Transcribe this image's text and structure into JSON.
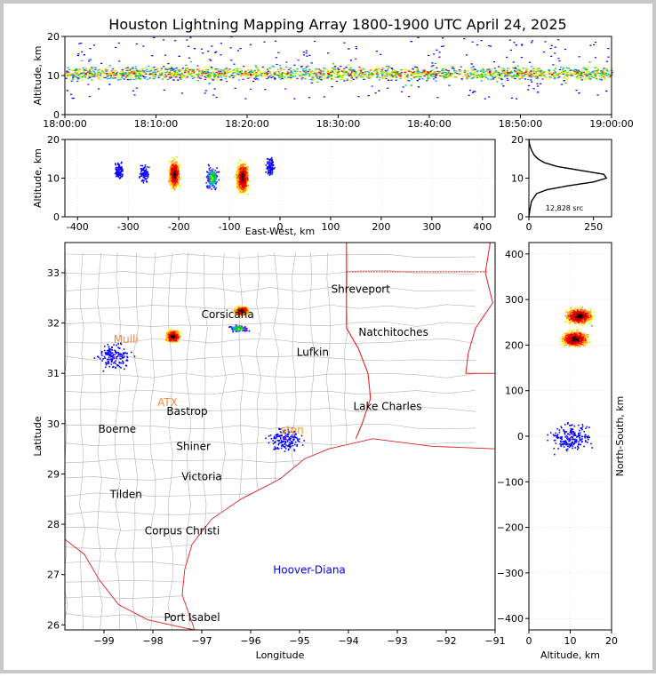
{
  "figure": {
    "title": "Houston Lightning Mapping Array 1800-1900 UTC April 24, 2025",
    "source_count_label": "12,828 src"
  },
  "colors": {
    "frame": "#c8c8c8",
    "grid": "#dcdcdc",
    "state_border": "#dd2222",
    "county_border": "#b4b4b4",
    "coast": "#dd2222",
    "density_scale": [
      "#0000ff",
      "#7700ff",
      "#00aaff",
      "#00cc00",
      "#aaff00",
      "#ffff00",
      "#ff9900",
      "#ff0000",
      "#aa0000",
      "#000000"
    ]
  },
  "chart_data": [
    {
      "panel": "time-altitude",
      "type": "scatter",
      "xlabel": "",
      "ylabel": "Altitude, km",
      "x_ticks": [
        "18:00:00",
        "18:10:00",
        "18:20:00",
        "18:30:00",
        "18:40:00",
        "18:50:00",
        "19:00:00"
      ],
      "xlim_minutes": [
        0,
        60
      ],
      "ylim": [
        0,
        20
      ],
      "y_ticks": [
        0,
        10,
        20
      ],
      "description_values": {
        "core_altitude_km": [
          8,
          13
        ],
        "max_altitude_km": 20
      }
    },
    {
      "panel": "east-west-altitude",
      "type": "scatter",
      "xlabel": "East-West, km",
      "ylabel": "Altitude, km",
      "xlim": [
        -425,
        425
      ],
      "ylim": [
        0,
        20
      ],
      "x_ticks": [
        -400,
        -300,
        -200,
        -100,
        0,
        100,
        200,
        300,
        400
      ],
      "y_ticks": [
        0,
        10,
        20
      ],
      "clusters": [
        {
          "x": -210,
          "alt": 11,
          "intensity": "high"
        },
        {
          "x": -75,
          "alt": 10,
          "intensity": "very high"
        },
        {
          "x": -320,
          "alt": 12,
          "intensity": "low"
        },
        {
          "x": -270,
          "alt": 11,
          "intensity": "low"
        },
        {
          "x": -135,
          "alt": 10,
          "intensity": "medium"
        },
        {
          "x": -20,
          "alt": 13,
          "intensity": "low"
        }
      ]
    },
    {
      "panel": "altitude-histogram",
      "type": "line",
      "xlim": [
        0,
        320
      ],
      "ylim": [
        0,
        20
      ],
      "x_ticks": [
        0,
        250
      ],
      "y_ticks": [
        0,
        10,
        20
      ],
      "profile": [
        {
          "alt": 0,
          "count": 0
        },
        {
          "alt": 2,
          "count": 4
        },
        {
          "alt": 4,
          "count": 10
        },
        {
          "alt": 6,
          "count": 30
        },
        {
          "alt": 7,
          "count": 70
        },
        {
          "alt": 8,
          "count": 150
        },
        {
          "alt": 9,
          "count": 250
        },
        {
          "alt": 10,
          "count": 300
        },
        {
          "alt": 11,
          "count": 290
        },
        {
          "alt": 12,
          "count": 200
        },
        {
          "alt": 13,
          "count": 110
        },
        {
          "alt": 14,
          "count": 60
        },
        {
          "alt": 15,
          "count": 35
        },
        {
          "alt": 16,
          "count": 20
        },
        {
          "alt": 17,
          "count": 12
        },
        {
          "alt": 18,
          "count": 6
        },
        {
          "alt": 19,
          "count": 2
        },
        {
          "alt": 20,
          "count": 0
        }
      ]
    },
    {
      "panel": "plan-view-map",
      "type": "scatter",
      "xlabel": "Longitude",
      "ylabel": "Latitude",
      "xlim": [
        -99.8,
        -91.0
      ],
      "ylim": [
        25.9,
        33.6
      ],
      "x_ticks": [
        -99,
        -98,
        -97,
        -96,
        -95,
        -94,
        -93,
        -92,
        -91
      ],
      "y_ticks": [
        26,
        27,
        28,
        29,
        30,
        31,
        32,
        33
      ],
      "clusters": [
        {
          "lon": -96.2,
          "lat": 32.25,
          "intensity": "very high"
        },
        {
          "lon": -97.6,
          "lat": 31.75,
          "intensity": "high"
        },
        {
          "lon": -96.25,
          "lat": 31.9,
          "intensity": "medium"
        },
        {
          "lon": -98.8,
          "lat": 31.35,
          "intensity": "low"
        },
        {
          "lon": -95.3,
          "lat": 29.7,
          "intensity": "low"
        }
      ],
      "cities": [
        {
          "name": "Shreveport",
          "lon": -93.75,
          "lat": 32.6,
          "color": "#000000"
        },
        {
          "name": "Natchitoches",
          "lon": -93.08,
          "lat": 31.75,
          "color": "#000000"
        },
        {
          "name": "Lufkin",
          "lon": -94.73,
          "lat": 31.35,
          "color": "#000000"
        },
        {
          "name": "Lake Charles",
          "lon": -93.2,
          "lat": 30.27,
          "color": "#000000"
        },
        {
          "name": "Corsicana",
          "lon": -96.47,
          "lat": 32.1,
          "color": "#000000"
        },
        {
          "name": "Bastrop",
          "lon": -97.3,
          "lat": 30.17,
          "color": "#000000"
        },
        {
          "name": "Boerne",
          "lon": -98.73,
          "lat": 29.82,
          "color": "#000000"
        },
        {
          "name": "Shiner",
          "lon": -97.17,
          "lat": 29.48,
          "color": "#000000"
        },
        {
          "name": "Victoria",
          "lon": -97.0,
          "lat": 28.88,
          "color": "#000000"
        },
        {
          "name": "Tilden",
          "lon": -98.55,
          "lat": 28.52,
          "color": "#000000"
        },
        {
          "name": "Corpus Christi",
          "lon": -97.4,
          "lat": 27.8,
          "color": "#000000"
        },
        {
          "name": "Port Isabel",
          "lon": -97.2,
          "lat": 26.08,
          "color": "#000000"
        },
        {
          "name": "Hoover-Diana",
          "lon": -94.8,
          "lat": 27.02,
          "color": "#0000ff"
        },
        {
          "name": "Mulli",
          "lon": -98.55,
          "lat": 31.6,
          "color": "#ff8844"
        },
        {
          "name": "ATX",
          "lon": -97.7,
          "lat": 30.35,
          "color": "#ff8844"
        },
        {
          "name": "ston",
          "lon": -95.15,
          "lat": 29.8,
          "color": "#ff9900"
        }
      ]
    },
    {
      "panel": "altitude-north-south",
      "type": "scatter",
      "xlabel": "Altitude, km",
      "ylabel": "North-South, km",
      "xlim": [
        0,
        20
      ],
      "ylim": [
        -425,
        425
      ],
      "x_ticks": [
        0,
        10,
        20
      ],
      "y_ticks": [
        -400,
        -300,
        -200,
        -100,
        0,
        100,
        200,
        300,
        400
      ],
      "clusters": [
        {
          "alt": 12,
          "ns": 265,
          "intensity": "very high"
        },
        {
          "alt": 11,
          "ns": 215,
          "intensity": "very high"
        },
        {
          "alt": 10,
          "ns": 0,
          "intensity": "low"
        }
      ]
    }
  ]
}
